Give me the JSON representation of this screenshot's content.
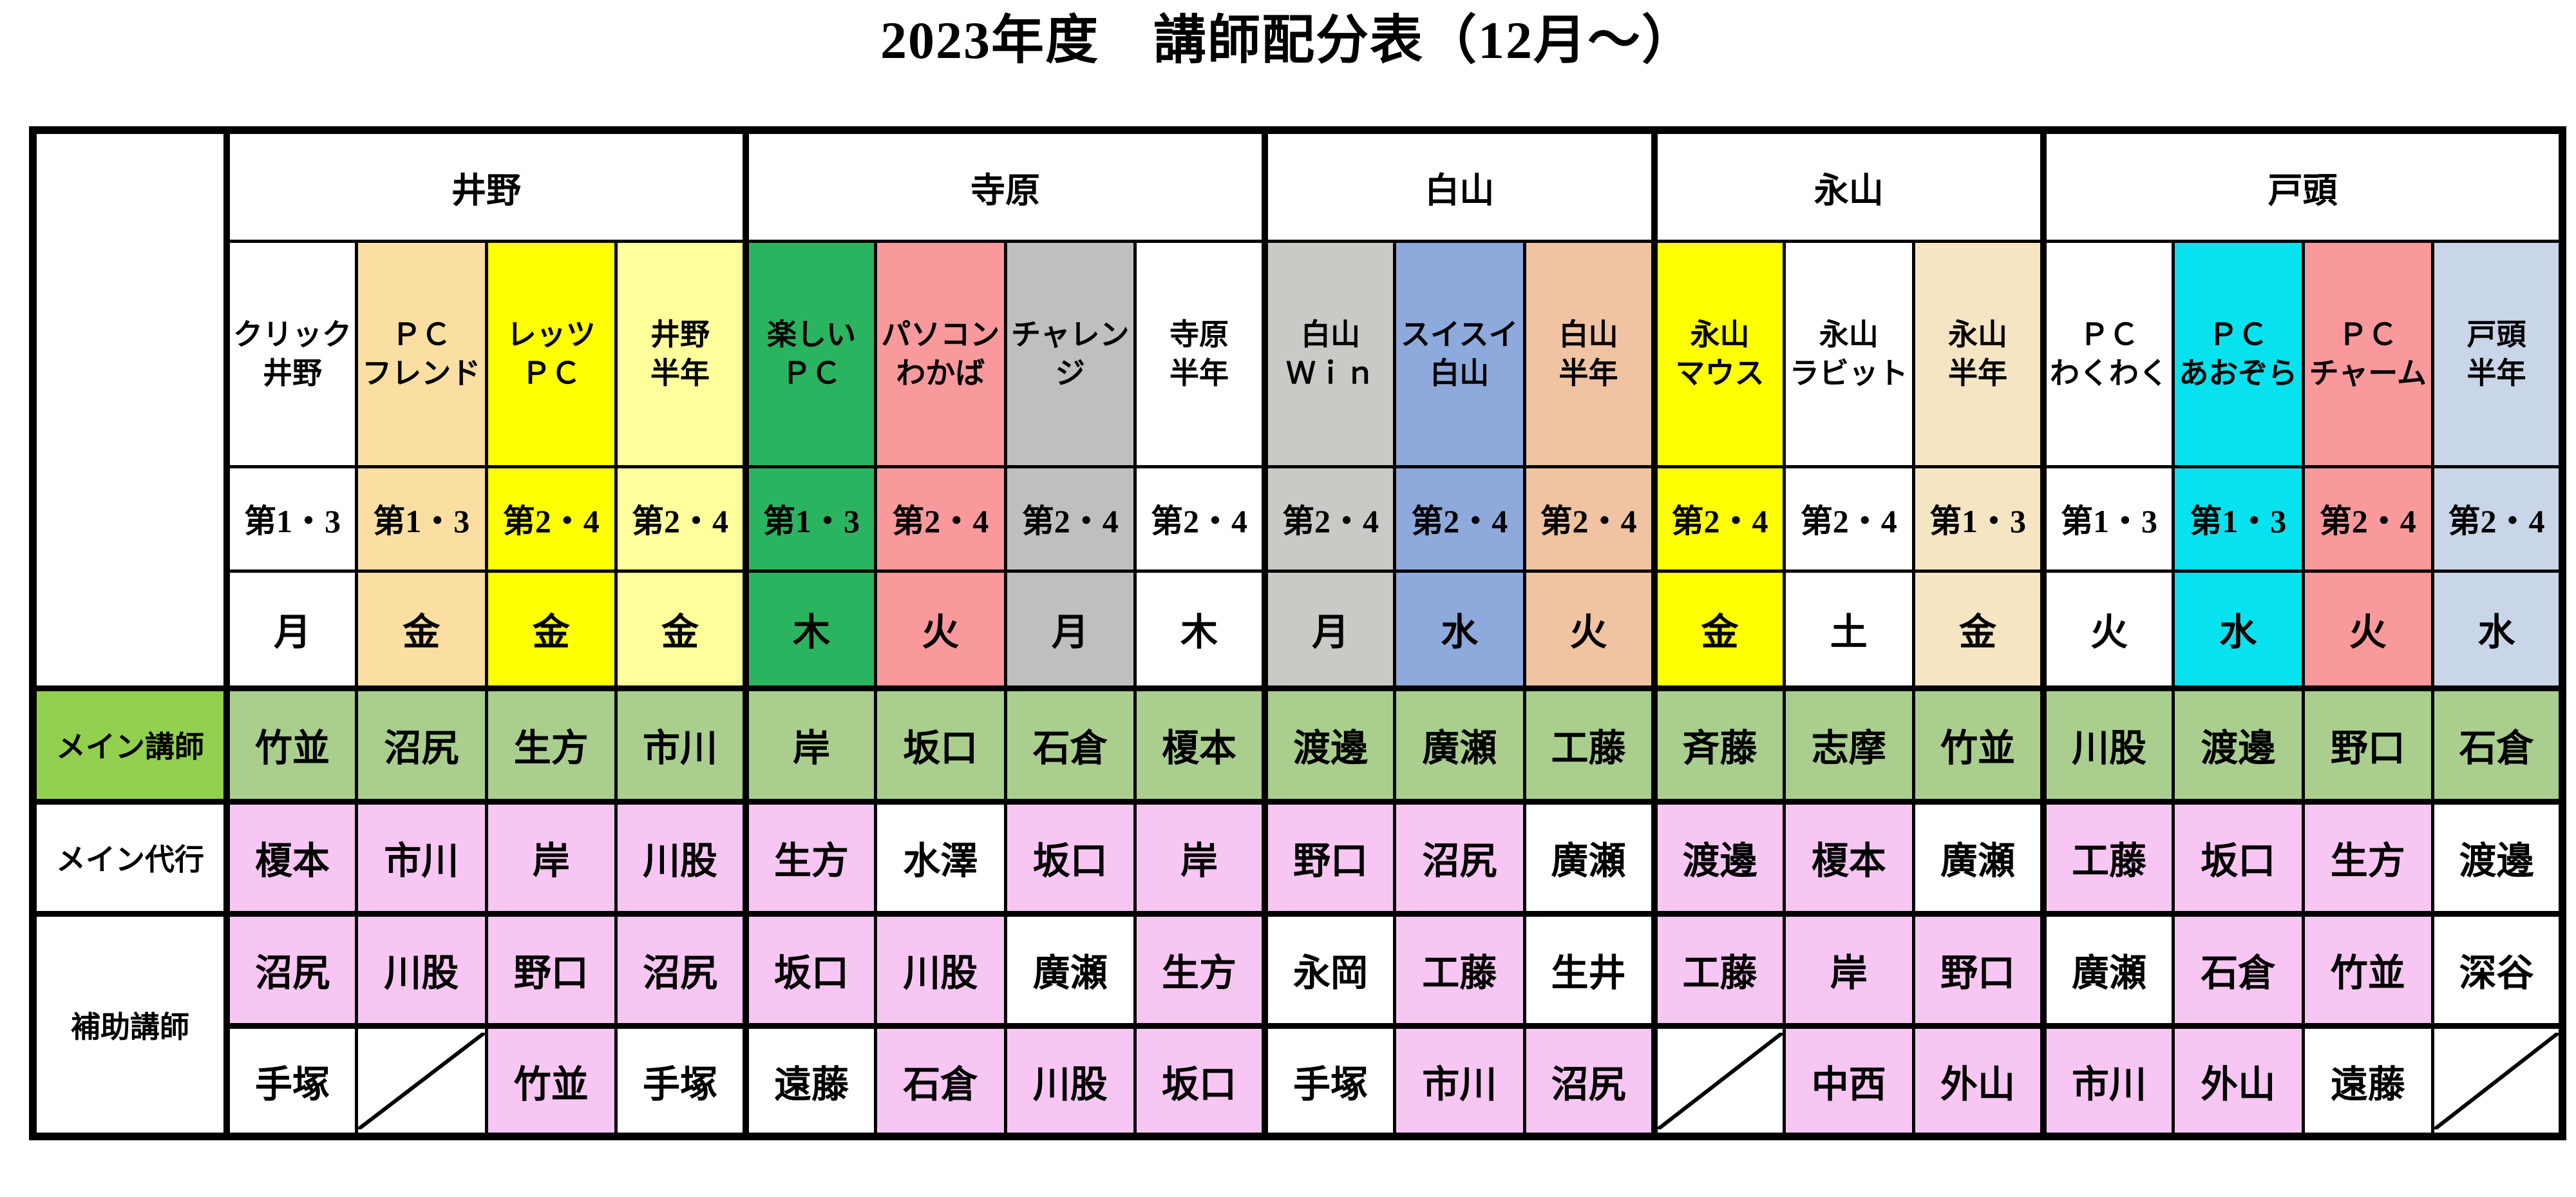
{
  "title": "2023年度　講師配分表（12月～）",
  "row_labels": {
    "main": "メイン講師",
    "deputy": "メイン代行",
    "assist": "補助講師"
  },
  "palette": {
    "white": "#FFFFFF",
    "wheat": "#FBDFA2",
    "yellow": "#FFFF00",
    "light_yellow": "#FFFF9C",
    "green": "#2BB45F",
    "salmon": "#FA999C",
    "gray": "#BFBFBF",
    "light_gray": "#C9C9C6",
    "blue_gray": "#8EA9DB",
    "peach": "#F0C4A2",
    "cream": "#F6E5C3",
    "cyan": "#06E2EE",
    "light_blue": "#C9D5E8",
    "label_green": "#92D050",
    "cell_green": "#A9CE8E",
    "pink": "#F7C6F2",
    "border": "#000000"
  },
  "groups": [
    {
      "name": "井野",
      "span": 4
    },
    {
      "name": "寺原",
      "span": 4
    },
    {
      "name": "白山",
      "span": 3
    },
    {
      "name": "永山",
      "span": 3
    },
    {
      "name": "戸頭",
      "span": 4
    }
  ],
  "columns": [
    {
      "class_lines": [
        "クリック",
        "井野"
      ],
      "schedule": "第1・3",
      "day": "月",
      "color": "white",
      "main": "竹並",
      "deputy": {
        "text": "榎本",
        "bg": "pink"
      },
      "assist1": {
        "text": "沼尻",
        "bg": "pink"
      },
      "assist2": {
        "text": "手塚",
        "bg": "white"
      }
    },
    {
      "class_lines": [
        "ＰＣ",
        "フレンド"
      ],
      "schedule": "第1・3",
      "day": "金",
      "color": "wheat",
      "main": "沼尻",
      "deputy": {
        "text": "市川",
        "bg": "pink"
      },
      "assist1": {
        "text": "川股",
        "bg": "pink"
      },
      "assist2": {
        "text": "",
        "bg": "white",
        "diagonal": true
      }
    },
    {
      "class_lines": [
        "レッツ",
        "ＰＣ"
      ],
      "schedule": "第2・4",
      "day": "金",
      "color": "yellow",
      "main": "生方",
      "deputy": {
        "text": "岸",
        "bg": "pink"
      },
      "assist1": {
        "text": "野口",
        "bg": "pink"
      },
      "assist2": {
        "text": "竹並",
        "bg": "pink"
      }
    },
    {
      "class_lines": [
        "井野",
        "半年"
      ],
      "schedule": "第2・4",
      "day": "金",
      "color": "light_yellow",
      "main": "市川",
      "deputy": {
        "text": "川股",
        "bg": "pink"
      },
      "assist1": {
        "text": "沼尻",
        "bg": "pink"
      },
      "assist2": {
        "text": "手塚",
        "bg": "white"
      }
    },
    {
      "class_lines": [
        "楽しい",
        "ＰＣ"
      ],
      "schedule": "第1・3",
      "day": "木",
      "color": "green",
      "main": "岸",
      "deputy": {
        "text": "生方",
        "bg": "pink"
      },
      "assist1": {
        "text": "坂口",
        "bg": "pink"
      },
      "assist2": {
        "text": "遠藤",
        "bg": "white"
      }
    },
    {
      "class_lines": [
        "パソコン",
        "わかば"
      ],
      "schedule": "第2・4",
      "day": "火",
      "color": "salmon",
      "main": "坂口",
      "deputy": {
        "text": "水澤",
        "bg": "white"
      },
      "assist1": {
        "text": "川股",
        "bg": "pink"
      },
      "assist2": {
        "text": "石倉",
        "bg": "pink"
      }
    },
    {
      "class_lines": [
        "チャレン",
        "ジ"
      ],
      "schedule": "第2・4",
      "day": "月",
      "color": "gray",
      "main": "石倉",
      "deputy": {
        "text": "坂口",
        "bg": "pink"
      },
      "assist1": {
        "text": "廣瀬",
        "bg": "white"
      },
      "assist2": {
        "text": "川股",
        "bg": "pink"
      }
    },
    {
      "class_lines": [
        "寺原",
        "半年"
      ],
      "schedule": "第2・4",
      "day": "木",
      "color": "white",
      "main": "榎本",
      "deputy": {
        "text": "岸",
        "bg": "pink"
      },
      "assist1": {
        "text": "生方",
        "bg": "pink"
      },
      "assist2": {
        "text": "坂口",
        "bg": "pink"
      }
    },
    {
      "class_lines": [
        "白山",
        "Ｗｉｎ"
      ],
      "schedule": "第2・4",
      "day": "月",
      "color": "light_gray",
      "main": "渡邊",
      "deputy": {
        "text": "野口",
        "bg": "pink"
      },
      "assist1": {
        "text": "永岡",
        "bg": "white"
      },
      "assist2": {
        "text": "手塚",
        "bg": "white"
      }
    },
    {
      "class_lines": [
        "スイスイ",
        "白山"
      ],
      "schedule": "第2・4",
      "day": "水",
      "color": "blue_gray",
      "main": "廣瀬",
      "deputy": {
        "text": "沼尻",
        "bg": "pink"
      },
      "assist1": {
        "text": "工藤",
        "bg": "pink"
      },
      "assist2": {
        "text": "市川",
        "bg": "pink"
      }
    },
    {
      "class_lines": [
        "白山",
        "半年"
      ],
      "schedule": "第2・4",
      "day": "火",
      "color": "peach",
      "main": "工藤",
      "deputy": {
        "text": "廣瀬",
        "bg": "white"
      },
      "assist1": {
        "text": "生井",
        "bg": "white"
      },
      "assist2": {
        "text": "沼尻",
        "bg": "pink"
      }
    },
    {
      "class_lines": [
        "永山",
        "マウス"
      ],
      "schedule": "第2・4",
      "day": "金",
      "color": "yellow",
      "main": "斉藤",
      "deputy": {
        "text": "渡邊",
        "bg": "pink"
      },
      "assist1": {
        "text": "工藤",
        "bg": "pink"
      },
      "assist2": {
        "text": "",
        "bg": "white",
        "diagonal": true
      }
    },
    {
      "class_lines": [
        "永山",
        "ラビット"
      ],
      "schedule": "第2・4",
      "day": "土",
      "color": "white",
      "main": "志摩",
      "deputy": {
        "text": "榎本",
        "bg": "pink"
      },
      "assist1": {
        "text": "岸",
        "bg": "pink"
      },
      "assist2": {
        "text": "中西",
        "bg": "pink"
      }
    },
    {
      "class_lines": [
        "永山",
        "半年"
      ],
      "schedule": "第1・3",
      "day": "金",
      "color": "cream",
      "main": "竹並",
      "deputy": {
        "text": "廣瀬",
        "bg": "white"
      },
      "assist1": {
        "text": "野口",
        "bg": "pink"
      },
      "assist2": {
        "text": "外山",
        "bg": "pink"
      }
    },
    {
      "class_lines": [
        "ＰＣ",
        "わくわく"
      ],
      "schedule": "第1・3",
      "day": "火",
      "color": "white",
      "main": "川股",
      "deputy": {
        "text": "工藤",
        "bg": "pink"
      },
      "assist1": {
        "text": "廣瀬",
        "bg": "white"
      },
      "assist2": {
        "text": "市川",
        "bg": "pink"
      }
    },
    {
      "class_lines": [
        "ＰＣ",
        "あおぞら"
      ],
      "schedule": "第1・3",
      "day": "水",
      "color": "cyan",
      "main": "渡邊",
      "deputy": {
        "text": "坂口",
        "bg": "pink"
      },
      "assist1": {
        "text": "石倉",
        "bg": "pink"
      },
      "assist2": {
        "text": "外山",
        "bg": "pink"
      }
    },
    {
      "class_lines": [
        "ＰＣ",
        "チャーム"
      ],
      "schedule": "第2・4",
      "day": "火",
      "color": "salmon",
      "main": "野口",
      "deputy": {
        "text": "生方",
        "bg": "pink"
      },
      "assist1": {
        "text": "竹並",
        "bg": "pink"
      },
      "assist2": {
        "text": "遠藤",
        "bg": "white"
      }
    },
    {
      "class_lines": [
        "戸頭",
        "半年"
      ],
      "schedule": "第2・4",
      "day": "水",
      "color": "light_blue",
      "main": "石倉",
      "deputy": {
        "text": "渡邊",
        "bg": "white"
      },
      "assist1": {
        "text": "深谷",
        "bg": "white"
      },
      "assist2": {
        "text": "",
        "bg": "white",
        "diagonal": true
      }
    }
  ]
}
